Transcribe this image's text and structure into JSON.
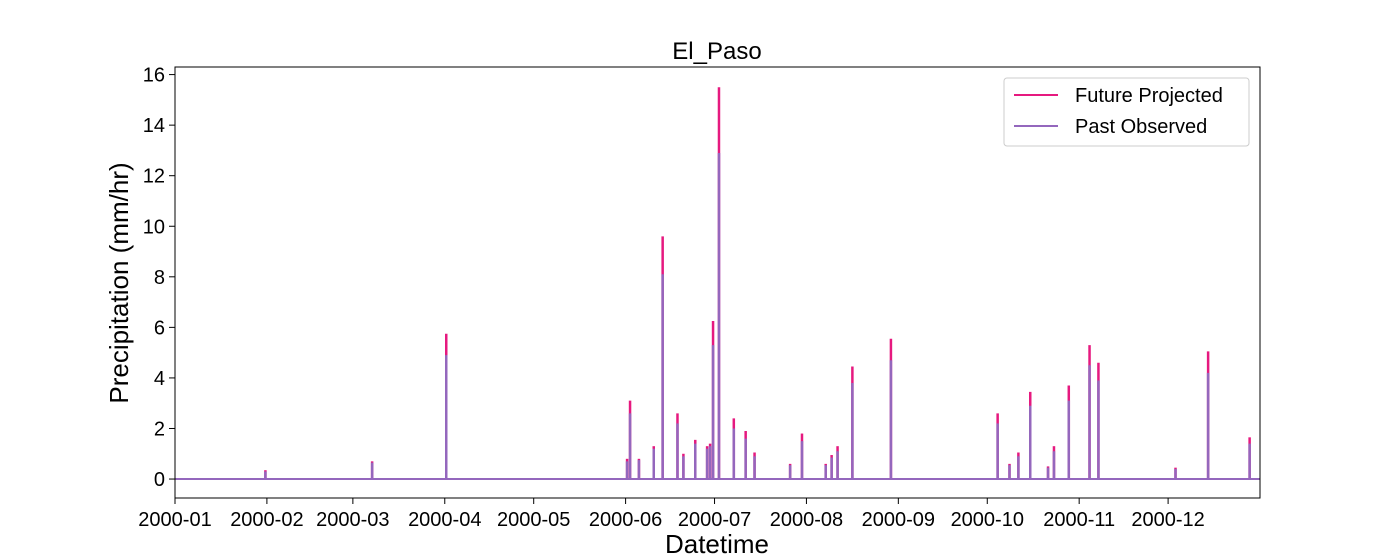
{
  "chart_data": {
    "type": "line",
    "title": "El_Paso",
    "xlabel": "Datetime",
    "ylabel": "Precipitation (mm/hr)",
    "xlim": [
      "2000-01-01",
      "2000-12-31"
    ],
    "ylim": [
      -0.75,
      16.3
    ],
    "x_ticks": [
      "2000-01",
      "2000-02",
      "2000-03",
      "2000-04",
      "2000-05",
      "2000-06",
      "2000-07",
      "2000-08",
      "2000-09",
      "2000-10",
      "2000-11",
      "2000-12"
    ],
    "y_ticks": [
      0,
      2,
      4,
      6,
      8,
      10,
      12,
      14,
      16
    ],
    "grid": false,
    "legend_position": "top-right",
    "series": [
      {
        "name": "Future Projected",
        "color": "#e6197f",
        "events": [
          {
            "date": "2000-01-31",
            "value": 0.35
          },
          {
            "date": "2000-03-07",
            "value": 0.7
          },
          {
            "date": "2000-04-01",
            "value": 5.75
          },
          {
            "date": "2000-06-01",
            "value": 0.8
          },
          {
            "date": "2000-06-02",
            "value": 3.1
          },
          {
            "date": "2000-06-05",
            "value": 0.8
          },
          {
            "date": "2000-06-10",
            "value": 1.3
          },
          {
            "date": "2000-06-13",
            "value": 9.6
          },
          {
            "date": "2000-06-18",
            "value": 2.6
          },
          {
            "date": "2000-06-20",
            "value": 1.0
          },
          {
            "date": "2000-06-24",
            "value": 1.55
          },
          {
            "date": "2000-06-28",
            "value": 1.3
          },
          {
            "date": "2000-06-29",
            "value": 1.4
          },
          {
            "date": "2000-06-30",
            "value": 6.25
          },
          {
            "date": "2000-07-02",
            "value": 15.5
          },
          {
            "date": "2000-07-07",
            "value": 2.4
          },
          {
            "date": "2000-07-11",
            "value": 1.9
          },
          {
            "date": "2000-07-14",
            "value": 1.05
          },
          {
            "date": "2000-07-26",
            "value": 0.6
          },
          {
            "date": "2000-07-30",
            "value": 1.8
          },
          {
            "date": "2000-08-07",
            "value": 0.6
          },
          {
            "date": "2000-08-09",
            "value": 0.95
          },
          {
            "date": "2000-08-11",
            "value": 1.3
          },
          {
            "date": "2000-08-16",
            "value": 4.45
          },
          {
            "date": "2000-08-29",
            "value": 5.55
          },
          {
            "date": "2000-10-04",
            "value": 2.6
          },
          {
            "date": "2000-10-08",
            "value": 0.6
          },
          {
            "date": "2000-10-11",
            "value": 1.05
          },
          {
            "date": "2000-10-15",
            "value": 3.45
          },
          {
            "date": "2000-10-21",
            "value": 0.5
          },
          {
            "date": "2000-10-23",
            "value": 1.3
          },
          {
            "date": "2000-10-28",
            "value": 3.7
          },
          {
            "date": "2000-11-04",
            "value": 5.3
          },
          {
            "date": "2000-11-07",
            "value": 4.6
          },
          {
            "date": "2000-12-03",
            "value": 0.45
          },
          {
            "date": "2000-12-14",
            "value": 5.05
          },
          {
            "date": "2000-12-28",
            "value": 1.65
          }
        ]
      },
      {
        "name": "Past Observed",
        "color": "#9467bd",
        "events": [
          {
            "date": "2000-01-31",
            "value": 0.3
          },
          {
            "date": "2000-03-07",
            "value": 0.65
          },
          {
            "date": "2000-04-01",
            "value": 4.9
          },
          {
            "date": "2000-06-01",
            "value": 0.7
          },
          {
            "date": "2000-06-02",
            "value": 2.6
          },
          {
            "date": "2000-06-05",
            "value": 0.75
          },
          {
            "date": "2000-06-10",
            "value": 1.2
          },
          {
            "date": "2000-06-13",
            "value": 8.1
          },
          {
            "date": "2000-06-18",
            "value": 2.2
          },
          {
            "date": "2000-06-20",
            "value": 0.9
          },
          {
            "date": "2000-06-24",
            "value": 1.4
          },
          {
            "date": "2000-06-28",
            "value": 1.2
          },
          {
            "date": "2000-06-29",
            "value": 1.3
          },
          {
            "date": "2000-06-30",
            "value": 5.3
          },
          {
            "date": "2000-07-02",
            "value": 12.9
          },
          {
            "date": "2000-07-07",
            "value": 2.0
          },
          {
            "date": "2000-07-11",
            "value": 1.6
          },
          {
            "date": "2000-07-14",
            "value": 0.9
          },
          {
            "date": "2000-07-26",
            "value": 0.55
          },
          {
            "date": "2000-07-30",
            "value": 1.5
          },
          {
            "date": "2000-08-07",
            "value": 0.55
          },
          {
            "date": "2000-08-09",
            "value": 0.85
          },
          {
            "date": "2000-08-11",
            "value": 1.1
          },
          {
            "date": "2000-08-16",
            "value": 3.8
          },
          {
            "date": "2000-08-29",
            "value": 4.7
          },
          {
            "date": "2000-10-04",
            "value": 2.2
          },
          {
            "date": "2000-10-08",
            "value": 0.55
          },
          {
            "date": "2000-10-11",
            "value": 0.9
          },
          {
            "date": "2000-10-15",
            "value": 2.9
          },
          {
            "date": "2000-10-21",
            "value": 0.45
          },
          {
            "date": "2000-10-23",
            "value": 1.1
          },
          {
            "date": "2000-10-28",
            "value": 3.1
          },
          {
            "date": "2000-11-04",
            "value": 4.5
          },
          {
            "date": "2000-11-07",
            "value": 3.9
          },
          {
            "date": "2000-12-03",
            "value": 0.4
          },
          {
            "date": "2000-12-14",
            "value": 4.2
          },
          {
            "date": "2000-12-28",
            "value": 1.4
          }
        ]
      }
    ]
  }
}
